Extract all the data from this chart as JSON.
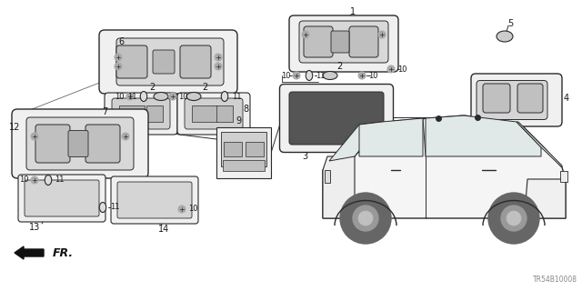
{
  "bg_color": "#ffffff",
  "diagram_code": "TR54B10008",
  "line_color": "#2a2a2a",
  "text_color": "#1a1a1a",
  "part_fill": "#e8e8e8",
  "dark_fill": "#888888",
  "mid_fill": "#bbbbbb"
}
